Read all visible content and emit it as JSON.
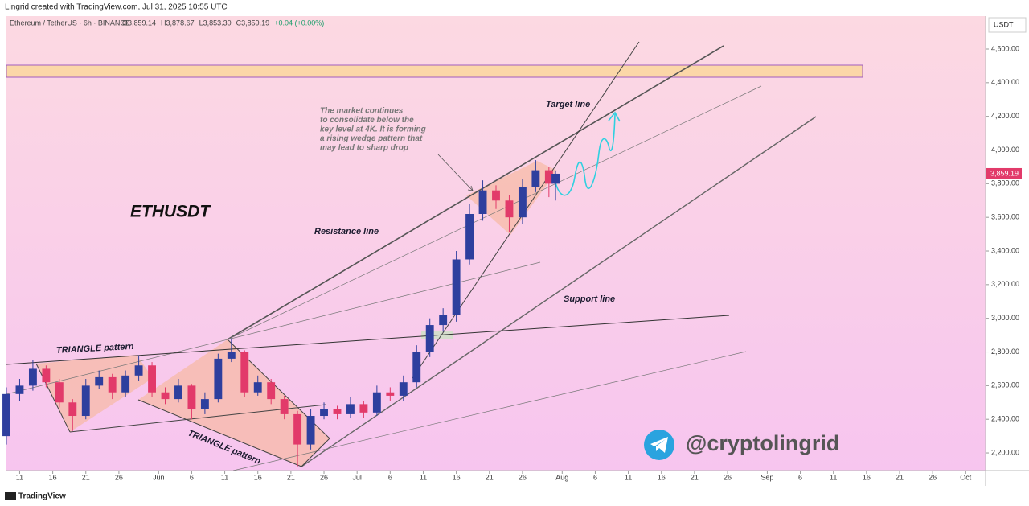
{
  "header": {
    "credit": "Lingrid created with TradingView.com, Jul 31, 2025 10:55 UTC",
    "symbol": "Ethereum / TetherUS · 6h · BINANCE",
    "ohlc": [
      "O3,859.14",
      "H3,878.67",
      "L3,853.30",
      "C3,859.19",
      "+0.04 (+0.00%)"
    ],
    "currency": "USDT"
  },
  "chart_data": {
    "type": "candlestick",
    "title": "ETHUSDT",
    "x": [
      "2025-05-09",
      "2025-05-11",
      "2025-05-13",
      "2025-05-15",
      "2025-05-17",
      "2025-05-19",
      "2025-05-21",
      "2025-05-23",
      "2025-05-25",
      "2025-05-27",
      "2025-05-29",
      "2025-05-31",
      "2025-06-02",
      "2025-06-04",
      "2025-06-06",
      "2025-06-08",
      "2025-06-10",
      "2025-06-12",
      "2025-06-14",
      "2025-06-16",
      "2025-06-18",
      "2025-06-20",
      "2025-06-22",
      "2025-06-24",
      "2025-06-26",
      "2025-06-28",
      "2025-06-30",
      "2025-07-02",
      "2025-07-04",
      "2025-07-06",
      "2025-07-08",
      "2025-07-10",
      "2025-07-12",
      "2025-07-14",
      "2025-07-16",
      "2025-07-18",
      "2025-07-20",
      "2025-07-22",
      "2025-07-24",
      "2025-07-26",
      "2025-07-28",
      "2025-07-30",
      "2025-07-31"
    ],
    "open": [
      2300,
      2550,
      2600,
      2700,
      2620,
      2500,
      2420,
      2600,
      2650,
      2560,
      2660,
      2720,
      2560,
      2520,
      2600,
      2460,
      2520,
      2760,
      2800,
      2560,
      2620,
      2520,
      2430,
      2250,
      2420,
      2460,
      2430,
      2490,
      2440,
      2560,
      2540,
      2620,
      2800,
      2960,
      3020,
      3350,
      3620,
      3760,
      3700,
      3600,
      3780,
      3880,
      3800
    ],
    "high": [
      2590,
      2640,
      2750,
      2720,
      2640,
      2520,
      2640,
      2690,
      2670,
      2690,
      2780,
      2740,
      2590,
      2640,
      2610,
      2560,
      2790,
      2880,
      2810,
      2660,
      2640,
      2540,
      2450,
      2460,
      2500,
      2480,
      2530,
      2510,
      2600,
      2590,
      2660,
      2840,
      3000,
      3060,
      3400,
      3680,
      3820,
      3790,
      3730,
      3830,
      3940,
      3900,
      3878.67
    ],
    "low": [
      2250,
      2510,
      2570,
      2590,
      2470,
      2330,
      2400,
      2580,
      2520,
      2530,
      2630,
      2530,
      2490,
      2500,
      2400,
      2430,
      2500,
      2740,
      2530,
      2540,
      2490,
      2400,
      2120,
      2220,
      2400,
      2400,
      2410,
      2410,
      2420,
      2510,
      2510,
      2590,
      2770,
      2920,
      2980,
      3320,
      3580,
      3650,
      3510,
      3560,
      3750,
      3720,
      3700
    ],
    "close": [
      2550,
      2600,
      2700,
      2620,
      2500,
      2420,
      2600,
      2650,
      2560,
      2660,
      2720,
      2560,
      2520,
      2600,
      2460,
      2520,
      2760,
      2800,
      2560,
      2620,
      2520,
      2430,
      2250,
      2420,
      2460,
      2430,
      2490,
      2440,
      2560,
      2540,
      2620,
      2800,
      2960,
      3020,
      3350,
      3620,
      3760,
      3700,
      3600,
      3780,
      3880,
      3800,
      3859.19
    ],
    "up_color": "#2e3f9e",
    "down_color": "#e23a6a",
    "last_price": {
      "value": 3859.19,
      "label": "3,859.19"
    },
    "xlim": [
      "2025-05-09",
      "2025-10-04"
    ],
    "xticks": [
      {
        "value": "2025-05-11",
        "label": "11"
      },
      {
        "value": "2025-05-16",
        "label": "16"
      },
      {
        "value": "2025-05-21",
        "label": "21"
      },
      {
        "value": "2025-05-26",
        "label": "26"
      },
      {
        "value": "2025-06-01",
        "label": "Jun"
      },
      {
        "value": "2025-06-06",
        "label": "6"
      },
      {
        "value": "2025-06-11",
        "label": "11"
      },
      {
        "value": "2025-06-16",
        "label": "16"
      },
      {
        "value": "2025-06-21",
        "label": "21"
      },
      {
        "value": "2025-06-26",
        "label": "26"
      },
      {
        "value": "2025-07-01",
        "label": "Jul"
      },
      {
        "value": "2025-07-06",
        "label": "6"
      },
      {
        "value": "2025-07-11",
        "label": "11"
      },
      {
        "value": "2025-07-16",
        "label": "16"
      },
      {
        "value": "2025-07-21",
        "label": "21"
      },
      {
        "value": "2025-07-26",
        "label": "26"
      },
      {
        "value": "2025-08-01",
        "label": "Aug"
      },
      {
        "value": "2025-08-06",
        "label": "6"
      },
      {
        "value": "2025-08-11",
        "label": "11"
      },
      {
        "value": "2025-08-16",
        "label": "16"
      },
      {
        "value": "2025-08-21",
        "label": "21"
      },
      {
        "value": "2025-08-26",
        "label": "26"
      },
      {
        "value": "2025-09-01",
        "label": "Sep"
      },
      {
        "value": "2025-09-06",
        "label": "6"
      },
      {
        "value": "2025-09-11",
        "label": "11"
      },
      {
        "value": "2025-09-16",
        "label": "16"
      },
      {
        "value": "2025-09-21",
        "label": "21"
      },
      {
        "value": "2025-09-26",
        "label": "26"
      },
      {
        "value": "2025-10-01",
        "label": "Oct"
      }
    ],
    "ylim": [
      2095,
      4796
    ],
    "yticks": [
      {
        "value": 2200,
        "label": "2,200.00"
      },
      {
        "value": 2400,
        "label": "2,400.00"
      },
      {
        "value": 2600,
        "label": "2,600.00"
      },
      {
        "value": 2800,
        "label": "2,800.00"
      },
      {
        "value": 3000,
        "label": "3,000.00"
      },
      {
        "value": 3200,
        "label": "3,200.00"
      },
      {
        "value": 3400,
        "label": "3,400.00"
      },
      {
        "value": 3600,
        "label": "3,600.00"
      },
      {
        "value": 3800,
        "label": "3,800.00"
      },
      {
        "value": 4000,
        "label": "4,000.00"
      },
      {
        "value": 4200,
        "label": "4,200.00"
      },
      {
        "value": 4400,
        "label": "4,400.00"
      },
      {
        "value": 4600,
        "label": "4,600.00"
      }
    ],
    "annotations": {
      "resistance": "Resistance line",
      "target": "Target line",
      "support": "Support line",
      "triangle1": "TRIANGLE pattern",
      "triangle2": "TRIANGLE pattern",
      "note": [
        "The market continues",
        "to consolidate below the",
        "key level at 4K. It is forming",
        "a rising wedge pattern that",
        "may lead to sharp drop"
      ],
      "handle": "@cryptolingrid"
    }
  },
  "footer": {
    "brand": "TradingView"
  }
}
